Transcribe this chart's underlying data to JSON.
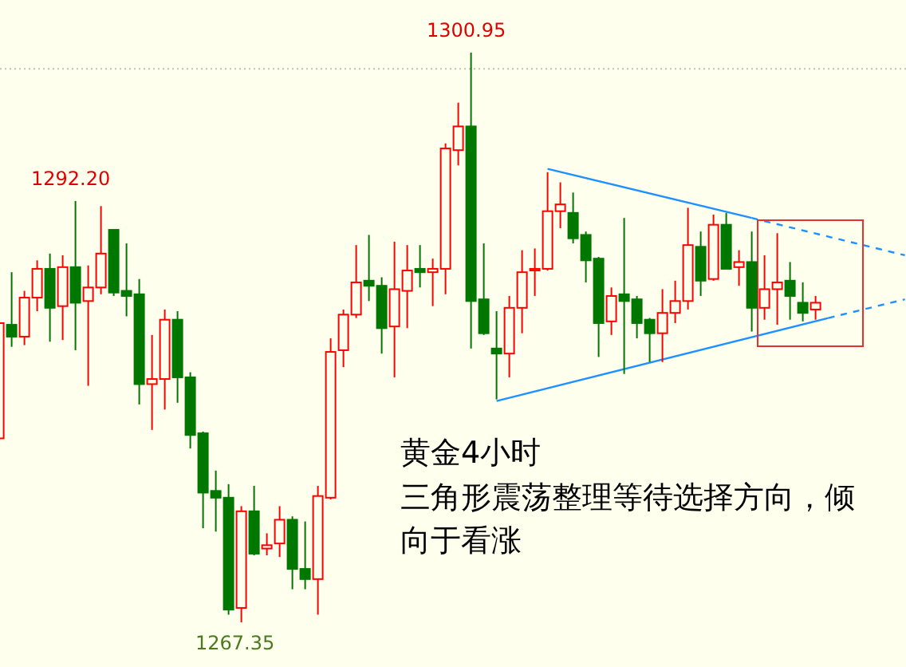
{
  "chart_data": {
    "type": "candlestick",
    "title": "黄金4小时",
    "annotations": [
      {
        "text": "1300.95",
        "y": 1300.95
      },
      {
        "text": "1292.20",
        "y": 1292.2
      },
      {
        "text": "1267.35",
        "y": 1267.35
      },
      "三角形震荡整理等待选择方向，倾向于看涨"
    ],
    "categories": [
      null,
      null,
      null,
      null,
      null,
      null,
      null,
      null,
      null,
      null,
      null,
      null,
      null,
      null,
      null,
      null,
      null,
      null,
      null,
      null,
      null,
      null,
      null,
      null,
      null,
      null,
      null,
      null,
      null,
      null,
      null,
      null,
      null,
      null,
      null,
      null,
      null,
      null,
      null,
      null,
      null,
      null,
      null,
      null,
      null,
      null,
      null,
      null,
      null,
      null,
      null,
      null,
      null,
      null,
      null,
      null,
      null,
      null,
      null,
      null,
      null,
      null,
      null,
      null,
      null,
      null,
      null,
      null,
      null,
      null,
      null,
      null
    ],
    "series": [
      {
        "type": "line",
        "color": "#1e90ff",
        "line_style": "solid",
        "values": [
          null,
          null,
          null,
          null,
          null,
          null,
          null,
          null,
          null,
          null,
          null,
          null,
          null,
          null,
          null,
          null,
          null,
          null,
          null,
          null,
          null,
          null,
          null,
          null,
          null,
          null,
          null,
          null,
          null,
          null,
          null,
          null,
          null,
          null,
          null,
          null,
          null,
          null,
          null,
          null,
          null,
          null,
          null,
          1294.1,
          null,
          null,
          null,
          null,
          null,
          null,
          null,
          null,
          null,
          null,
          null,
          null,
          null,
          null,
          null,
          1291.2,
          null,
          null,
          null,
          null,
          null,
          null,
          null,
          null,
          null,
          null,
          null,
          null
        ]
      },
      {
        "type": "line",
        "color": "#1e90ff",
        "line_style": "dashed",
        "values": [
          null,
          null,
          null,
          null,
          null,
          null,
          null,
          null,
          null,
          null,
          null,
          null,
          null,
          null,
          null,
          null,
          null,
          null,
          null,
          null,
          null,
          null,
          null,
          null,
          null,
          null,
          null,
          null,
          null,
          null,
          null,
          null,
          null,
          null,
          null,
          null,
          null,
          null,
          null,
          null,
          null,
          null,
          null,
          null,
          null,
          null,
          null,
          null,
          null,
          null,
          null,
          null,
          null,
          null,
          null,
          null,
          null,
          null,
          null,
          1291.2,
          null,
          null,
          null,
          null,
          null,
          null,
          null,
          null,
          null,
          null,
          null,
          1289.0
        ]
      },
      {
        "type": "line",
        "color": "#1e90ff",
        "line_style": "solid",
        "values": [
          null,
          null,
          null,
          null,
          null,
          null,
          null,
          null,
          null,
          null,
          null,
          null,
          null,
          null,
          null,
          null,
          null,
          null,
          null,
          null,
          null,
          null,
          null,
          null,
          null,
          null,
          null,
          null,
          null,
          null,
          null,
          null,
          null,
          null,
          null,
          null,
          null,
          null,
          null,
          1280.4,
          null,
          null,
          null,
          null,
          null,
          null,
          null,
          null,
          null,
          null,
          null,
          null,
          null,
          null,
          null,
          null,
          null,
          null,
          null,
          null,
          null,
          null,
          null,
          null,
          null,
          1285.3,
          null,
          null,
          null,
          null,
          null,
          null
        ]
      },
      {
        "type": "line",
        "color": "#1e90ff",
        "line_style": "dashed",
        "values": [
          null,
          null,
          null,
          null,
          null,
          null,
          null,
          null,
          null,
          null,
          null,
          null,
          null,
          null,
          null,
          null,
          null,
          null,
          null,
          null,
          null,
          null,
          null,
          null,
          null,
          null,
          null,
          null,
          null,
          null,
          null,
          null,
          null,
          null,
          null,
          null,
          null,
          null,
          null,
          null,
          null,
          null,
          null,
          null,
          null,
          null,
          null,
          null,
          null,
          null,
          null,
          null,
          null,
          null,
          null,
          null,
          null,
          null,
          null,
          null,
          null,
          null,
          null,
          null,
          null,
          1285.3,
          null,
          null,
          null,
          null,
          null,
          1286.4
        ]
      }
    ],
    "ohlc": [
      [
        1278.2,
        1285.2,
        1277.9,
        1285.0
      ],
      [
        1284.9,
        1288.0,
        1283.6,
        1284.2
      ],
      [
        1284.2,
        1286.9,
        1283.7,
        1286.5
      ],
      [
        1286.5,
        1288.7,
        1285.7,
        1288.2
      ],
      [
        1288.2,
        1289.1,
        1283.9,
        1285.9
      ],
      [
        1286.0,
        1289.0,
        1284.0,
        1288.3
      ],
      [
        1288.3,
        1292.2,
        1283.4,
        1286.2
      ],
      [
        1286.3,
        1288.4,
        1281.3,
        1287.1
      ],
      [
        1287.1,
        1291.9,
        1286.7,
        1289.1
      ],
      [
        1290.5,
        1290.5,
        1286.6,
        1286.8
      ],
      [
        1286.9,
        1289.7,
        1285.4,
        1286.6
      ],
      [
        1286.7,
        1287.6,
        1280.2,
        1281.4
      ],
      [
        1281.4,
        1284.3,
        1278.7,
        1281.7
      ],
      [
        1281.7,
        1285.8,
        1279.9,
        1285.2
      ],
      [
        1285.2,
        1285.7,
        1280.3,
        1281.8
      ],
      [
        1281.8,
        1282.1,
        1277.6,
        1278.4
      ],
      [
        1278.5,
        1278.6,
        1272.9,
        1275.0
      ],
      [
        1275.1,
        1276.3,
        1272.7,
        1274.7
      ],
      [
        1274.7,
        1275.5,
        1267.8,
        1268.1
      ],
      [
        1268.2,
        1274.2,
        1267.35,
        1273.9
      ],
      [
        1273.9,
        1275.4,
        1271.3,
        1271.4
      ],
      [
        1271.7,
        1272.6,
        1271.3,
        1271.9
      ],
      [
        1272.0,
        1274.2,
        1271.2,
        1273.4
      ],
      [
        1273.4,
        1273.6,
        1269.3,
        1270.5
      ],
      [
        1270.5,
        1273.3,
        1269.3,
        1269.9
      ],
      [
        1269.9,
        1275.4,
        1267.8,
        1274.8
      ],
      [
        1274.7,
        1284.1,
        1274.6,
        1283.3
      ],
      [
        1283.4,
        1285.8,
        1282.4,
        1285.5
      ],
      [
        1285.5,
        1289.6,
        1285.3,
        1287.4
      ],
      [
        1287.5,
        1290.2,
        1286.3,
        1287.2
      ],
      [
        1287.2,
        1287.7,
        1283.2,
        1284.7
      ],
      [
        1284.8,
        1289.8,
        1281.8,
        1287.0
      ],
      [
        1286.9,
        1289.6,
        1284.7,
        1288.1
      ],
      [
        1288.2,
        1289.6,
        1287.1,
        1288.0
      ],
      [
        1288.0,
        1288.8,
        1286.0,
        1288.2
      ],
      [
        1288.2,
        1295.6,
        1286.7,
        1295.3
      ],
      [
        1295.2,
        1298.0,
        1294.3,
        1296.6
      ],
      [
        1296.6,
        1300.95,
        1283.5,
        1286.3
      ],
      [
        1286.4,
        1289.7,
        1284.3,
        1284.4
      ],
      [
        1283.5,
        1285.7,
        1280.5,
        1283.2
      ],
      [
        1283.2,
        1286.6,
        1281.8,
        1285.9
      ],
      [
        1285.9,
        1289.3,
        1284.4,
        1288.0
      ],
      [
        1288.1,
        1289.4,
        1286.6,
        1288.2
      ],
      [
        1288.2,
        1293.9,
        1288.1,
        1291.6
      ],
      [
        1291.6,
        1293.3,
        1290.6,
        1292.0
      ],
      [
        1291.5,
        1292.7,
        1289.7,
        1290.0
      ],
      [
        1290.2,
        1290.4,
        1287.4,
        1288.7
      ],
      [
        1288.8,
        1288.9,
        1283.0,
        1285.0
      ],
      [
        1285.1,
        1287.1,
        1284.3,
        1286.6
      ],
      [
        1286.7,
        1291.2,
        1282.0,
        1286.3
      ],
      [
        1286.4,
        1286.6,
        1284.1,
        1285.0
      ],
      [
        1285.2,
        1285.3,
        1282.7,
        1284.4
      ],
      [
        1284.4,
        1287.0,
        1282.7,
        1285.6
      ],
      [
        1285.6,
        1287.5,
        1285.0,
        1286.3
      ],
      [
        1286.3,
        1291.8,
        1285.8,
        1289.6
      ],
      [
        1289.5,
        1290.4,
        1286.6,
        1287.5
      ],
      [
        1287.6,
        1291.4,
        1287.5,
        1290.8
      ],
      [
        1290.8,
        1291.5,
        1288.2,
        1288.2
      ],
      [
        1288.3,
        1289.3,
        1287.2,
        1288.6
      ],
      [
        1288.6,
        1290.4,
        1284.5,
        1285.9
      ],
      [
        1285.9,
        1289.0,
        1285.2,
        1287.0
      ],
      [
        1287.0,
        1290.3,
        1284.9,
        1287.4
      ],
      [
        1287.5,
        1288.6,
        1285.2,
        1286.6
      ],
      [
        1286.2,
        1287.4,
        1285.1,
        1285.6
      ],
      [
        1285.8,
        1286.6,
        1285.2,
        1286.2
      ],
      null,
      null,
      null,
      null,
      null,
      null,
      null
    ],
    "colors": [
      "#ff0000",
      "#007800",
      "#ff0000",
      "#ff0000",
      "#007800",
      "#ff0000",
      "#007800",
      "#ff0000",
      "#ff0000",
      "#007800",
      "#007800",
      "#007800",
      "#ff0000",
      "#ff0000",
      "#007800",
      "#007800",
      "#007800",
      "#007800",
      "#007800",
      "#ff0000",
      "#007800",
      "#ff0000",
      "#ff0000",
      "#007800",
      "#007800",
      "#ff0000",
      "#ff0000",
      "#ff0000",
      "#ff0000",
      "#007800",
      "#007800",
      "#ff0000",
      "#ff0000",
      "#007800",
      "#ff0000",
      "#ff0000",
      "#ff0000",
      "#007800",
      "#007800",
      "#007800",
      "#ff0000",
      "#ff0000",
      "#ff0000",
      "#ff0000",
      "#ff0000",
      "#007800",
      "#007800",
      "#007800",
      "#ff0000",
      "#007800",
      "#007800",
      "#007800",
      "#ff0000",
      "#ff0000",
      "#ff0000",
      "#007800",
      "#ff0000",
      "#007800",
      "#ff0000",
      "#007800",
      "#ff0000",
      "#ff0000",
      "#007800",
      "#007800",
      "#ff0000",
      null,
      null,
      null,
      null,
      null,
      null,
      null
    ],
    "ref_lines": [
      {
        "axis": "y",
        "value": 1300,
        "color": "#c0c0c0",
        "line_style": "dotted"
      }
    ]
  }
}
